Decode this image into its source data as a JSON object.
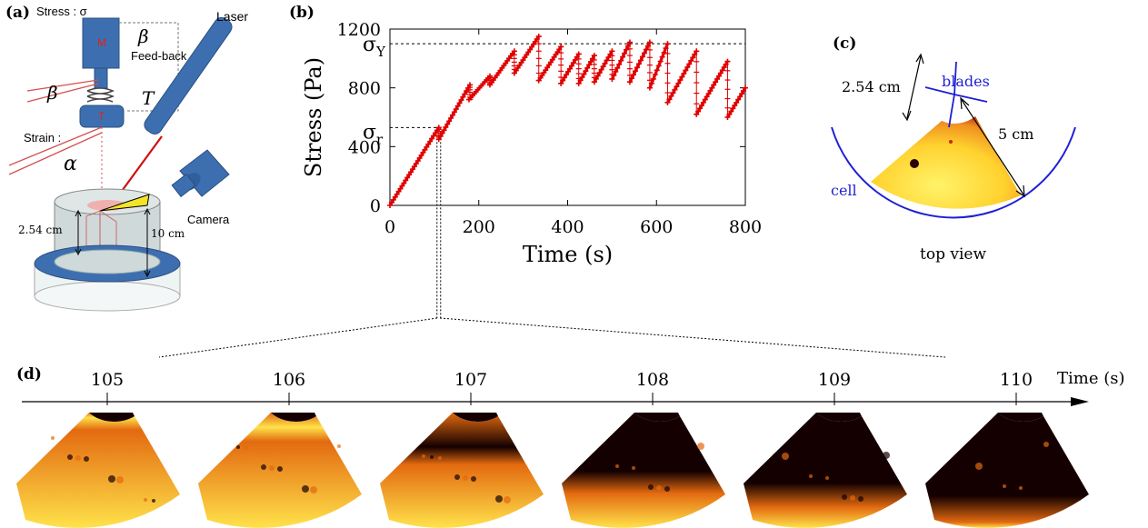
{
  "panels": {
    "a": "(a)",
    "b": "(b)",
    "c": "(c)",
    "d": "(d)"
  },
  "panel_a": {
    "stress_label": "Stress : σ",
    "laser": "Laser",
    "beta_top": "β",
    "feedback": "Feed-back",
    "motor": "M",
    "transducer": "T",
    "beta_left": "β",
    "torque": "T",
    "strain_label": "Strain :",
    "alpha": "α",
    "camera": "Camera",
    "height_small": "2.54 cm",
    "height_big": "10 cm"
  },
  "chart_data": {
    "type": "scatter",
    "title": "",
    "xlabel": "Time (s)",
    "ylabel": "Stress (Pa)",
    "xlim": [
      0,
      800
    ],
    "ylim": [
      0,
      1200
    ],
    "xticks": [
      "0",
      "200",
      "400",
      "600",
      "800"
    ],
    "yticks": [
      "0",
      "400",
      "800",
      "1200"
    ],
    "grid": false,
    "color": "#e00000",
    "reference_lines": [
      {
        "label_main": "σ",
        "label_sub": "Y",
        "value": 1100
      },
      {
        "label_main": "σ",
        "label_sub": "r",
        "value": 530,
        "time": 110
      }
    ],
    "segments": [
      {
        "x": [
          0,
          110
        ],
        "y": [
          0,
          530
        ]
      },
      {
        "x": [
          110,
          180
        ],
        "y": [
          450,
          820
        ]
      },
      {
        "x": [
          178,
          225
        ],
        "y": [
          720,
          880
        ]
      },
      {
        "x": [
          225,
          280
        ],
        "y": [
          820,
          1050
        ]
      },
      {
        "x": [
          280,
          335
        ],
        "y": [
          900,
          1150
        ]
      },
      {
        "x": [
          335,
          385
        ],
        "y": [
          850,
          1080
        ]
      },
      {
        "x": [
          385,
          425
        ],
        "y": [
          830,
          1030
        ]
      },
      {
        "x": [
          425,
          460
        ],
        "y": [
          830,
          1020
        ]
      },
      {
        "x": [
          460,
          500
        ],
        "y": [
          840,
          1050
        ]
      },
      {
        "x": [
          500,
          540
        ],
        "y": [
          860,
          1110
        ]
      },
      {
        "x": [
          540,
          585
        ],
        "y": [
          840,
          1110
        ]
      },
      {
        "x": [
          585,
          625
        ],
        "y": [
          800,
          1100
        ]
      },
      {
        "x": [
          625,
          690
        ],
        "y": [
          700,
          1050
        ]
      },
      {
        "x": [
          690,
          760
        ],
        "y": [
          620,
          980
        ]
      },
      {
        "x": [
          760,
          800
        ],
        "y": [
          600,
          800
        ]
      }
    ]
  },
  "panel_c": {
    "blades": "blades",
    "cell": "cell",
    "dim_left": "2.54 cm",
    "dim_right": "5 cm",
    "caption": "top view"
  },
  "panel_d": {
    "axis_label": "Time (s)",
    "times": [
      "105",
      "106",
      "107",
      "108",
      "109",
      "110"
    ],
    "dark_fraction": [
      0.05,
      0.15,
      0.35,
      0.6,
      0.72,
      0.85
    ]
  },
  "colors": {
    "bright": "#ffe24a",
    "mid": "#e36a10",
    "dark": "#140000",
    "blue": "#1f1fd6",
    "steel": "#3d6fb0"
  }
}
